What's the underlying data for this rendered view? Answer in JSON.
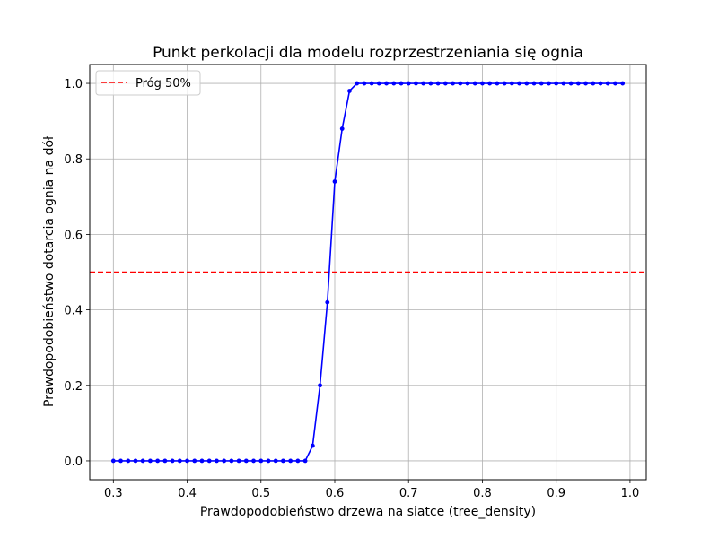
{
  "chart_data": {
    "type": "line",
    "title": "Punkt perkolacji dla modelu rozprzestrzeniania się ognia",
    "xlabel": "Prawdopodobieństwo drzewa na siatce (tree_density)",
    "ylabel": "Prawdopodobieństwo dotarcia ognia na dół",
    "xlim": [
      0.268,
      1.022
    ],
    "ylim": [
      -0.05,
      1.05
    ],
    "xticks": [
      "0.3",
      "0.4",
      "0.5",
      "0.6",
      "0.7",
      "0.8",
      "0.9",
      "1.0"
    ],
    "yticks": [
      "0.0",
      "0.2",
      "0.4",
      "0.6",
      "0.8",
      "1.0"
    ],
    "grid": true,
    "legend_position": "upper-left",
    "series": [
      {
        "color": "#0000ff",
        "marker": "circle",
        "x": [
          0.3,
          0.31,
          0.32,
          0.33,
          0.34,
          0.35,
          0.36,
          0.37,
          0.38,
          0.39,
          0.4,
          0.41,
          0.42,
          0.43,
          0.44,
          0.45,
          0.46,
          0.47,
          0.48,
          0.49,
          0.5,
          0.51,
          0.52,
          0.53,
          0.54,
          0.55,
          0.56,
          0.57,
          0.58,
          0.59,
          0.6,
          0.61,
          0.62,
          0.63,
          0.64,
          0.65,
          0.66,
          0.67,
          0.68,
          0.69,
          0.7,
          0.71,
          0.72,
          0.73,
          0.74,
          0.75,
          0.76,
          0.77,
          0.78,
          0.79,
          0.8,
          0.81,
          0.82,
          0.83,
          0.84,
          0.85,
          0.86,
          0.87,
          0.88,
          0.89,
          0.9,
          0.91,
          0.92,
          0.93,
          0.94,
          0.95,
          0.96,
          0.97,
          0.98,
          0.99
        ],
        "values": [
          0,
          0,
          0,
          0,
          0,
          0,
          0,
          0,
          0,
          0,
          0,
          0,
          0,
          0,
          0,
          0,
          0,
          0,
          0,
          0,
          0,
          0,
          0,
          0,
          0,
          0,
          0,
          0.04,
          0.2,
          0.42,
          0.74,
          0.88,
          0.98,
          1,
          1,
          1,
          1,
          1,
          1,
          1,
          1,
          1,
          1,
          1,
          1,
          1,
          1,
          1,
          1,
          1,
          1,
          1,
          1,
          1,
          1,
          1,
          1,
          1,
          1,
          1,
          1,
          1,
          1,
          1,
          1,
          1,
          1,
          1,
          1,
          1
        ]
      }
    ],
    "hlines": [
      {
        "y": 0.5,
        "name": "Próg 50%",
        "color": "#ff0000",
        "style": "dashed"
      }
    ]
  }
}
